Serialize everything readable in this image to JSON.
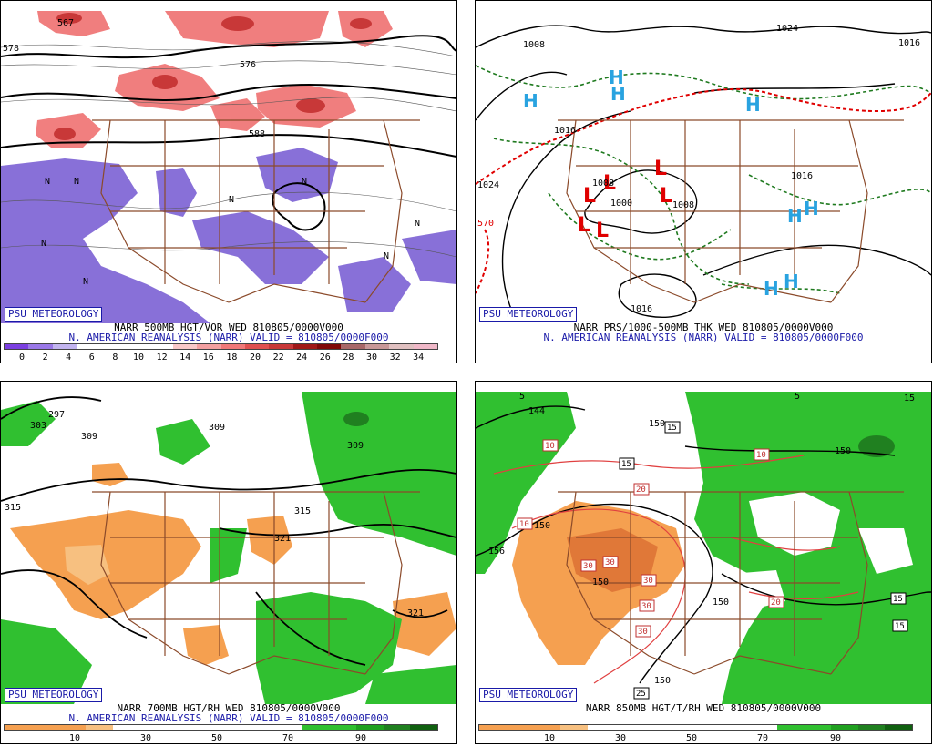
{
  "badge": "PSU METEOROLOGY",
  "panels": [
    {
      "caption1": "NARR 500MB HGT/VOR WED 810805/0000V000",
      "caption2": "N. AMERICAN REANALYSIS (NARR) VALID = 810805/0000F000",
      "colorbar_colors": [
        "#7b3fe0",
        "#9a78e8",
        "#c2b4f0",
        "#ffffff",
        "#ffffff",
        "#ffffff",
        "#ffffff",
        "#f8c8c8",
        "#f4a0a0",
        "#f07878",
        "#e05050",
        "#c83838",
        "#a01818",
        "#800808",
        "#a86868",
        "#c89898",
        "#e0c0c0",
        "#f0b8c8"
      ],
      "ticks": [
        "0",
        "2",
        "4",
        "6",
        "8",
        "10",
        "12",
        "14",
        "16",
        "18",
        "20",
        "22",
        "24",
        "26",
        "28",
        "30",
        "32",
        "34"
      ],
      "contour_labels": [
        "567",
        "578",
        "576",
        "588",
        "N",
        "N",
        "N",
        "N",
        "N",
        "N",
        "N",
        "N"
      ]
    },
    {
      "caption1": "NARR PRS/1000-500MB THK WED 810805/0000V000",
      "caption2": "N. AMERICAN REANALYSIS (NARR) VALID = 810805/0000F000",
      "contour_labels": [
        "1008",
        "1024",
        "1016",
        "1016",
        "1008",
        "1000",
        "1008",
        "1016",
        "1016",
        "1024",
        "570"
      ],
      "symbols": [
        "H",
        "H",
        "H",
        "H",
        "H",
        "H",
        "H",
        "H",
        "L",
        "L",
        "L",
        "L",
        "L",
        "L"
      ]
    },
    {
      "caption1": "NARR 700MB HGT/RH WED 810805/0000V000",
      "caption2": "N. AMERICAN REANALYSIS (NARR) VALID = 810805/0000F000",
      "colorbar_colors": [
        "#f5a050",
        "#f5a050",
        "#f5a050",
        "#f7c080",
        "#ffffff",
        "#ffffff",
        "#ffffff",
        "#ffffff",
        "#ffffff",
        "#ffffff",
        "#ffffff",
        "#30c030",
        "#30c030",
        "#20a020",
        "#208020",
        "#106010"
      ],
      "ticks": [
        "10",
        "30",
        "50",
        "70",
        "90"
      ],
      "contour_labels": [
        "297",
        "303",
        "309",
        "309",
        "309",
        "315",
        "315",
        "321",
        "321"
      ]
    },
    {
      "caption1": "NARR 850MB HGT/T/RH WED 810805/0000V000",
      "caption2": "",
      "colorbar_colors": [
        "#f5a050",
        "#f5a050",
        "#f5a050",
        "#f7c080",
        "#ffffff",
        "#ffffff",
        "#ffffff",
        "#ffffff",
        "#ffffff",
        "#ffffff",
        "#ffffff",
        "#30c030",
        "#30c030",
        "#20a020",
        "#208020",
        "#106010"
      ],
      "ticks": [
        "10",
        "30",
        "50",
        "70",
        "90"
      ],
      "contour_labels": [
        "5",
        "144",
        "150",
        "15",
        "5",
        "150",
        "156",
        "150",
        "150",
        "150",
        "150"
      ],
      "boxed_labels": [
        "15",
        "10",
        "10",
        "15",
        "20",
        "10",
        "30",
        "30",
        "30",
        "30",
        "30",
        "20",
        "15",
        "15",
        "25"
      ]
    }
  ]
}
